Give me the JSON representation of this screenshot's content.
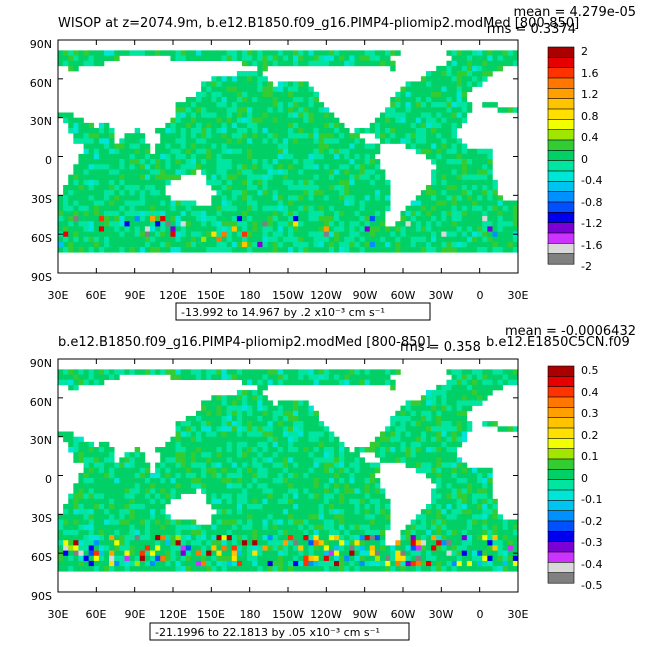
{
  "panels": [
    {
      "title": "WISOP at z=2074.9m, b.e12.B1850.f09_g16.PIMP4-pliomip2.modMed [800-850]",
      "stats": {
        "mean_label": "mean = 4.279e-05",
        "rms_label": "rms = 0.3374"
      },
      "range_label": "-13.992 to 14.967 by .2 x10⁻³ cm s⁻¹",
      "colorbar": {
        "labels": [
          "2",
          "1.6",
          "1.2",
          "0.8",
          "0.4",
          "0",
          "-0.4",
          "-0.8",
          "-1.2",
          "-1.6",
          "-2"
        ],
        "colors": [
          "#aa0000",
          "#e60000",
          "#ff3300",
          "#ff7700",
          "#ffa000",
          "#ffc400",
          "#ffe000",
          "#f2ff00",
          "#a0e600",
          "#33cc33",
          "#00d066",
          "#00e6a0",
          "#00e6d6",
          "#00c4f0",
          "#0090ff",
          "#0050ff",
          "#0000ee",
          "#7a00d6",
          "#cc33ff",
          "#d9d9d9",
          "#808080"
        ]
      }
    },
    {
      "title": "b.e12.B1850.f09_g16.PIMP4-pliomip2.modMed [800-850]",
      "overlay_label": "b.e12.E1850C5CN.f09",
      "stats": {
        "mean_label": "mean = -0.0006432",
        "rms_label": "rms = 0.358"
      },
      "range_label": "-21.1996 to 22.1813 by .05 x10⁻³ cm s⁻¹",
      "colorbar": {
        "labels": [
          "0.5",
          "0.4",
          "0.3",
          "0.2",
          "0.1",
          "0",
          "-0.1",
          "-0.2",
          "-0.3",
          "-0.4",
          "-0.5"
        ],
        "colors": [
          "#aa0000",
          "#e60000",
          "#ff3300",
          "#ff7700",
          "#ffa000",
          "#ffc400",
          "#ffe000",
          "#f2ff00",
          "#a0e600",
          "#33cc33",
          "#00d066",
          "#00e6a0",
          "#00e6d6",
          "#00c4f0",
          "#0090ff",
          "#0050ff",
          "#0000ee",
          "#7a00d6",
          "#cc33ff",
          "#d9d9d9",
          "#808080"
        ]
      }
    }
  ],
  "chart_data": [
    {
      "type": "heatmap",
      "title": "WISOP at z=2074.9m, b.e12.B1850.f09_g16.PIMP4-pliomip2.modMed [800-850]",
      "x_ticks": [
        "30E",
        "60E",
        "90E",
        "120E",
        "150E",
        "180",
        "150W",
        "120W",
        "90W",
        "60W",
        "30W",
        "0",
        "30E"
      ],
      "y_ticks": [
        "90N",
        "60N",
        "30N",
        "0",
        "30S",
        "60S",
        "90S"
      ],
      "xlim": [
        30,
        390
      ],
      "ylim": [
        -90,
        90
      ],
      "contour_min": -13.992,
      "contour_max": 14.967,
      "contour_interval": 0.2,
      "units": "x10^-3 cm s^-1",
      "mean": 4.279e-05,
      "rms": 0.3374,
      "colorbar_levels": [
        2,
        1.6,
        1.2,
        0.8,
        0.4,
        0,
        -0.4,
        -0.8,
        -1.2,
        -1.6,
        -2
      ]
    },
    {
      "type": "heatmap",
      "title": "b.e12.B1850.f09_g16.PIMP4-pliomip2.modMed [800-850]",
      "x_ticks": [
        "30E",
        "60E",
        "90E",
        "120E",
        "150E",
        "180",
        "150W",
        "120W",
        "90W",
        "60W",
        "30W",
        "0",
        "30E"
      ],
      "y_ticks": [
        "90N",
        "60N",
        "30N",
        "0",
        "30S",
        "60S",
        "90S"
      ],
      "xlim": [
        30,
        390
      ],
      "ylim": [
        -90,
        90
      ],
      "contour_min": -21.1996,
      "contour_max": 22.1813,
      "contour_interval": 0.05,
      "units": "x10^-3 cm s^-1",
      "mean": -0.0006432,
      "rms": 0.358,
      "colorbar_levels": [
        0.5,
        0.4,
        0.3,
        0.2,
        0.1,
        0,
        -0.1,
        -0.2,
        -0.3,
        -0.4,
        -0.5
      ]
    }
  ]
}
